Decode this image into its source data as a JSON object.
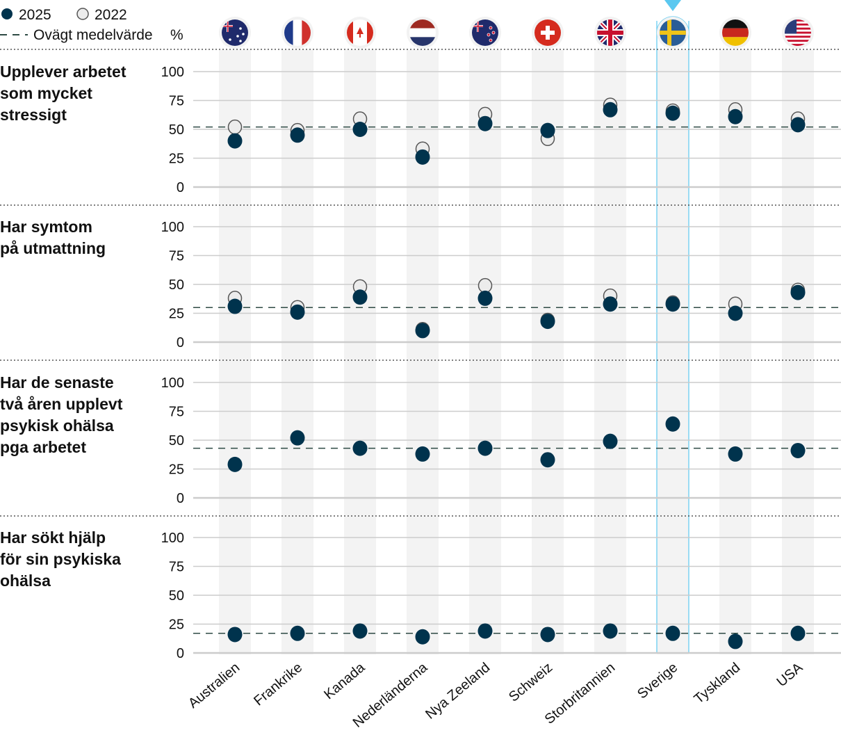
{
  "legend": {
    "s2025": "2025",
    "s2022": "2022",
    "mean": "Ovägt medelvärde",
    "unit": "%"
  },
  "colors": {
    "s2025": "#00334d",
    "s2022_fill": "#ececec",
    "s2022_stroke": "#555555",
    "mean": "#2e4a44",
    "highlight": "#5bc8f0",
    "stripe": "#f3f3f3",
    "grid": "#cccccc"
  },
  "highlight_country": "Sverige",
  "flags": [
    "australia-flag",
    "france-flag",
    "canada-flag",
    "netherlands-flag",
    "new-zealand-flag",
    "switzerland-flag",
    "uk-flag",
    "sweden-flag",
    "germany-flag",
    "usa-flag"
  ],
  "chart_data": [
    {
      "type": "scatter",
      "title": "Upplever arbetet som mycket stressigt",
      "ylim": [
        0,
        100
      ],
      "yticks": [
        0,
        25,
        50,
        75,
        100
      ],
      "grid": true,
      "categories": [
        "Australien",
        "Frankrike",
        "Kanada",
        "Nederländerna",
        "Nya Zeeland",
        "Schweiz",
        "Storbritannien",
        "Sverige",
        "Tyskland",
        "USA"
      ],
      "series": [
        {
          "name": "2025",
          "values": [
            40,
            45,
            50,
            26,
            55,
            49,
            67,
            64,
            61,
            54
          ]
        },
        {
          "name": "2022",
          "values": [
            52,
            49,
            59,
            33,
            63,
            42,
            71,
            66,
            67,
            59
          ]
        }
      ],
      "mean": 52
    },
    {
      "type": "scatter",
      "title": "Har symtom på utmattning",
      "ylim": [
        0,
        100
      ],
      "yticks": [
        0,
        25,
        50,
        75,
        100
      ],
      "grid": true,
      "categories": [
        "Australien",
        "Frankrike",
        "Kanada",
        "Nederländerna",
        "Nya Zeeland",
        "Schweiz",
        "Storbritannien",
        "Sverige",
        "Tyskland",
        "USA"
      ],
      "series": [
        {
          "name": "2025",
          "values": [
            31,
            26,
            39,
            10,
            38,
            18,
            33,
            33,
            25,
            43
          ]
        },
        {
          "name": "2022",
          "values": [
            38,
            30,
            48,
            11,
            49,
            19,
            40,
            34,
            33,
            45
          ]
        }
      ],
      "mean": 30
    },
    {
      "type": "scatter",
      "title": "Har de senaste två åren upplevt psykisk ohälsa pga arbetet",
      "ylim": [
        0,
        100
      ],
      "yticks": [
        0,
        25,
        50,
        75,
        100
      ],
      "grid": true,
      "categories": [
        "Australien",
        "Frankrike",
        "Kanada",
        "Nederländerna",
        "Nya Zeeland",
        "Schweiz",
        "Storbritannien",
        "Sverige",
        "Tyskland",
        "USA"
      ],
      "series": [
        {
          "name": "2025",
          "values": [
            29,
            52,
            43,
            38,
            43,
            33,
            49,
            64,
            38,
            41
          ]
        }
      ],
      "mean": 43
    },
    {
      "type": "scatter",
      "title": "Har sökt hjälp för sin psykiska ohälsa",
      "ylim": [
        0,
        100
      ],
      "yticks": [
        0,
        25,
        50,
        75,
        100
      ],
      "grid": true,
      "categories": [
        "Australien",
        "Frankrike",
        "Kanada",
        "Nederländerna",
        "Nya Zeeland",
        "Schweiz",
        "Storbritannien",
        "Sverige",
        "Tyskland",
        "USA"
      ],
      "series": [
        {
          "name": "2025",
          "values": [
            16,
            17,
            19,
            14,
            19,
            16,
            19,
            17,
            10,
            17
          ]
        }
      ],
      "mean": 17
    }
  ],
  "panel_titles": [
    [
      "Upplever arbetet",
      "som mycket",
      "stressigt"
    ],
    [
      "Har symtom",
      "på utmattning"
    ],
    [
      "Har de senaste",
      "två åren upplevt",
      "psykisk ohälsa",
      "pga arbetet"
    ],
    [
      "Har sökt hjälp",
      "för sin psykiska",
      "ohälsa"
    ]
  ]
}
